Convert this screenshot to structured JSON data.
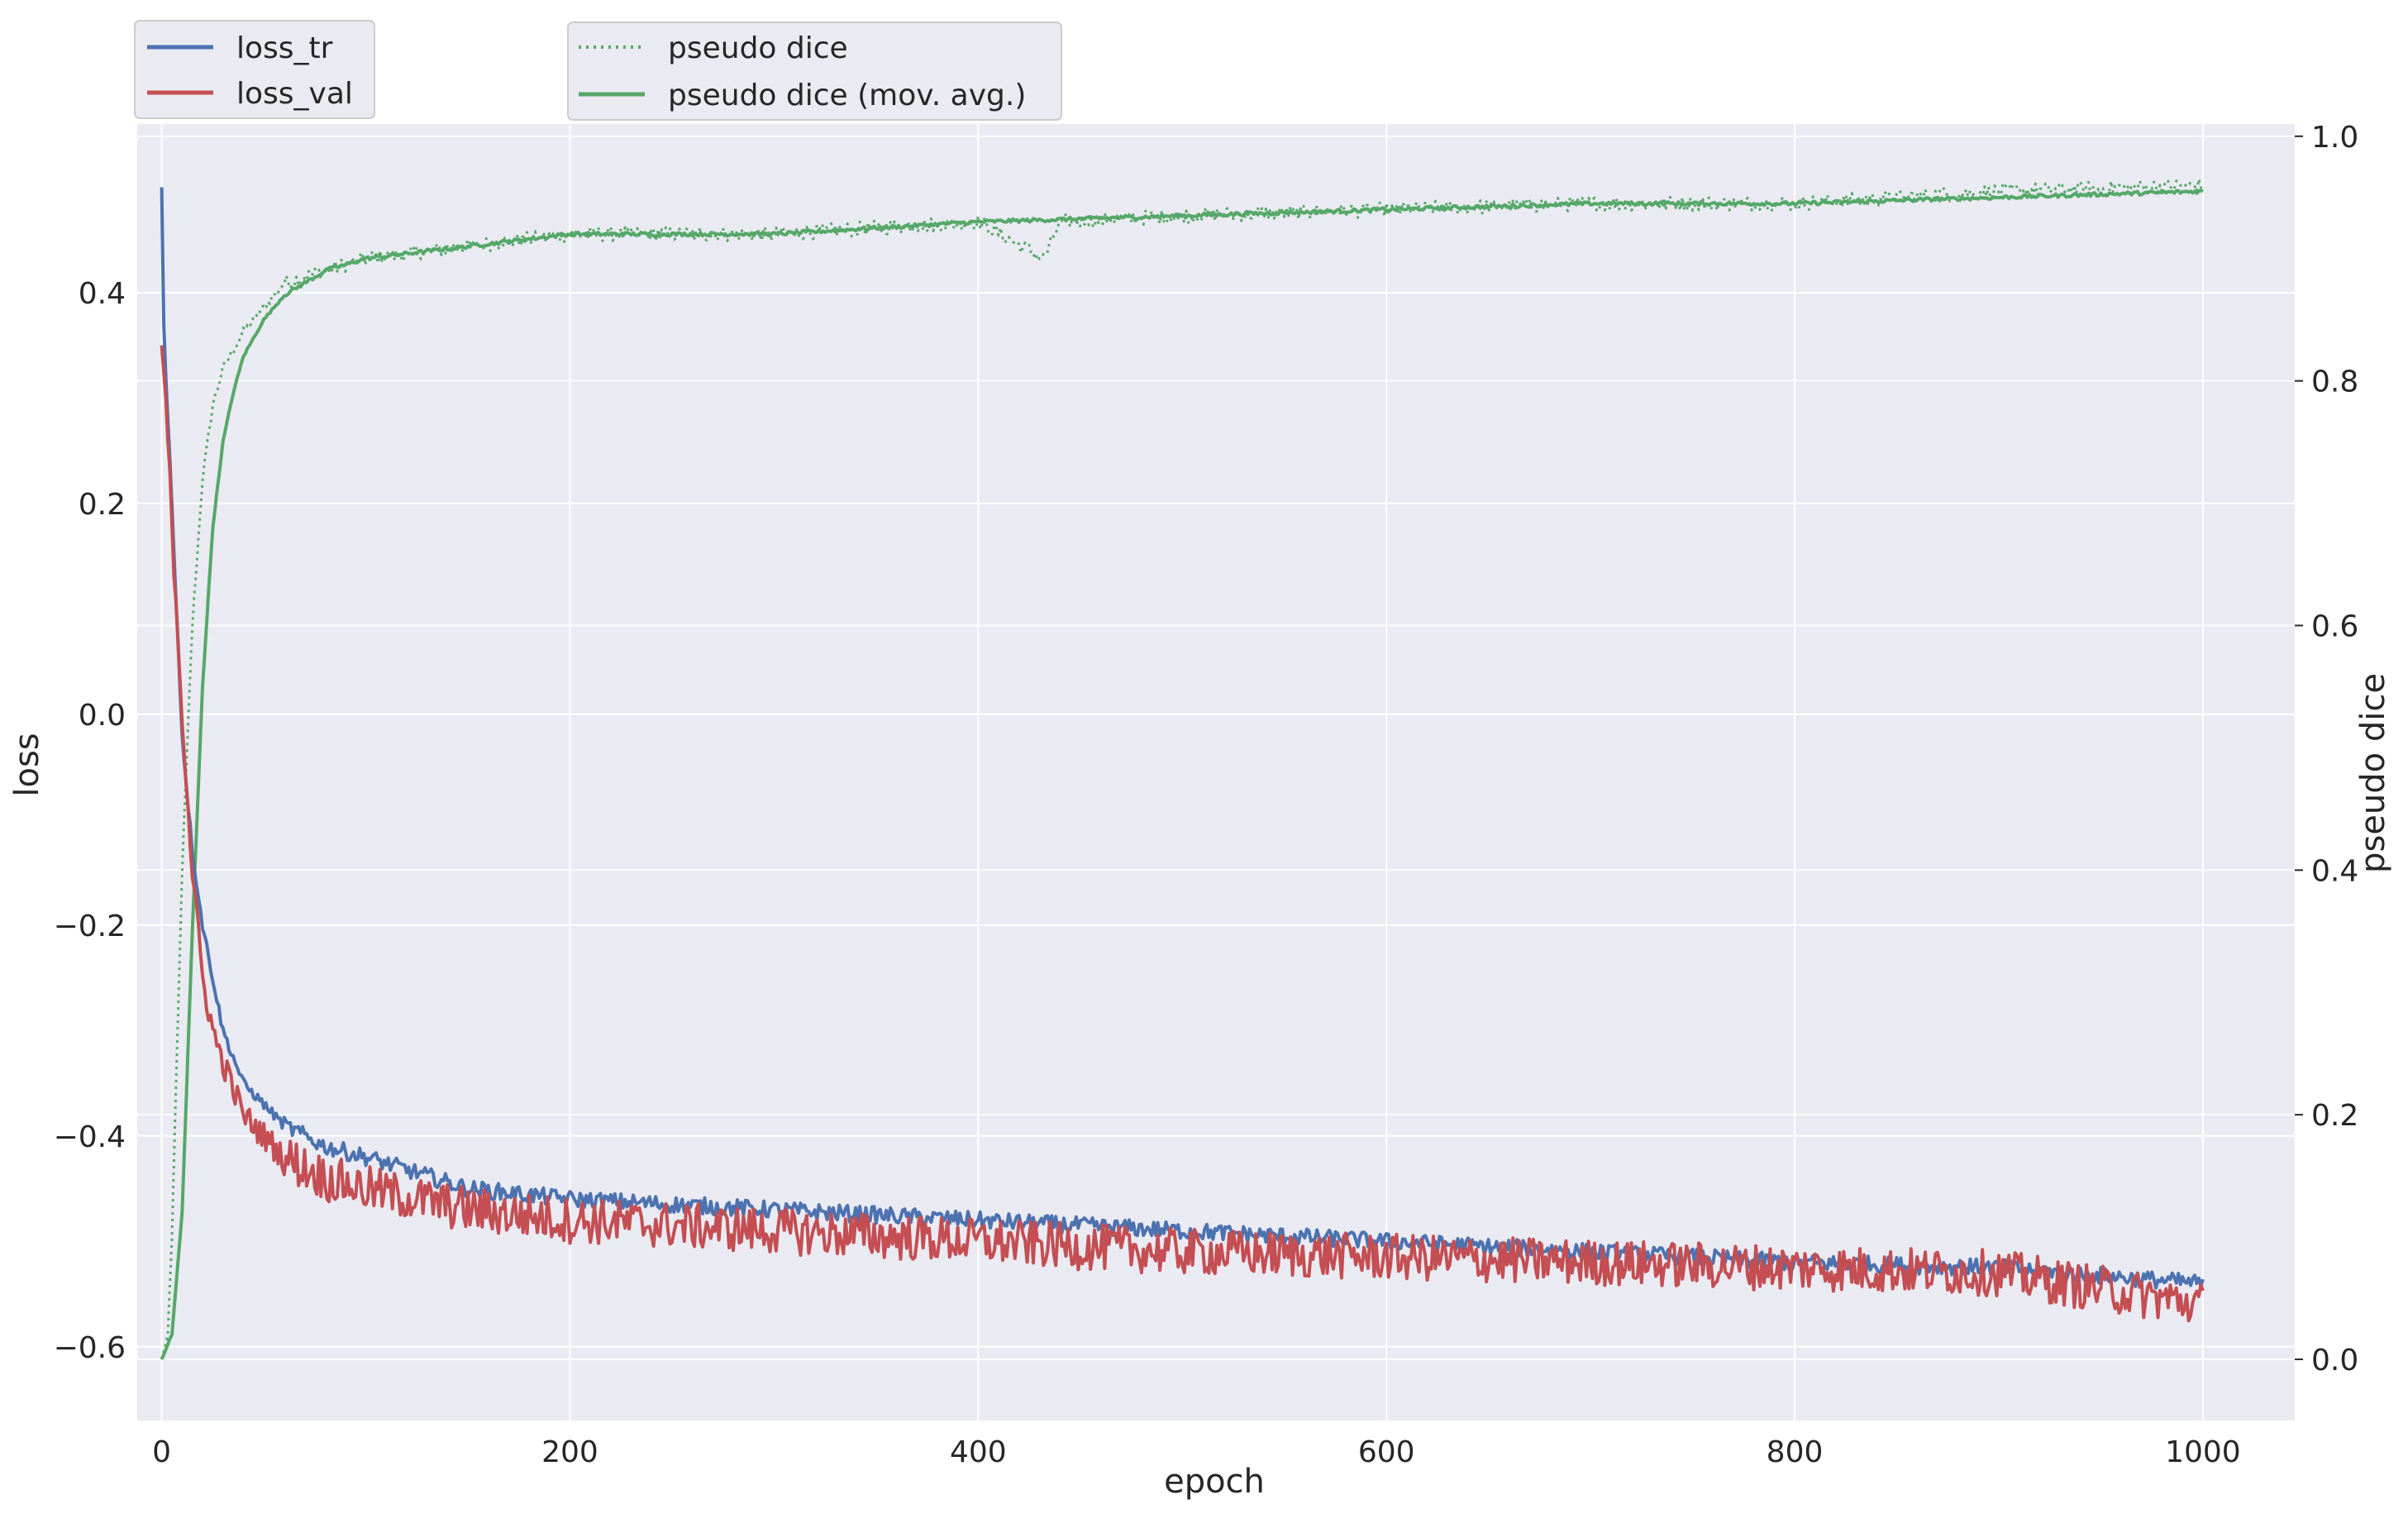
{
  "chart_data": {
    "type": "line",
    "xlabel": "epoch",
    "ylabel_left": "loss",
    "ylabel_right": "pseudo dice",
    "xlim": [
      -12,
      1045
    ],
    "ylim_left": [
      -0.67,
      0.56
    ],
    "ylim_right": [
      -0.05,
      1.01
    ],
    "xticks": [
      0,
      200,
      400,
      600,
      800,
      1000
    ],
    "yticks_left": [
      -0.6,
      -0.4,
      -0.2,
      0.0,
      0.2,
      0.4
    ],
    "yticks_left_labels": [
      "−0.6",
      "−0.4",
      "−0.2",
      "0.0",
      "0.2",
      "0.4"
    ],
    "yticks_right": [
      0.0,
      0.2,
      0.4,
      0.6,
      0.8,
      1.0
    ],
    "yticks_right_labels": [
      "0.0",
      "0.2",
      "0.4",
      "0.6",
      "0.8",
      "1.0"
    ],
    "grid": true,
    "background": "#eaeaf2",
    "colors": {
      "loss_tr": "#4c72b0",
      "loss_val": "#c44e52",
      "dice": "#55a868"
    },
    "legend_left": [
      "loss_tr",
      "loss_val"
    ],
    "legend_right": [
      "pseudo dice",
      "pseudo dice (mov. avg.)"
    ],
    "series": [
      {
        "name": "loss_tr",
        "axis": "left",
        "style": "solid",
        "x": [
          0,
          1,
          2,
          5,
          10,
          15,
          20,
          25,
          30,
          40,
          50,
          60,
          80,
          100,
          150,
          200,
          300,
          400,
          500,
          600,
          700,
          800,
          900,
          1000
        ],
        "y": [
          0.5,
          0.37,
          0.32,
          0.2,
          -0.02,
          -0.13,
          -0.2,
          -0.25,
          -0.3,
          -0.35,
          -0.37,
          -0.39,
          -0.41,
          -0.42,
          -0.45,
          -0.46,
          -0.47,
          -0.48,
          -0.49,
          -0.5,
          -0.51,
          -0.52,
          -0.525,
          -0.54
        ]
      },
      {
        "name": "loss_val",
        "axis": "left",
        "style": "solid",
        "x": [
          0,
          2,
          5,
          10,
          15,
          20,
          25,
          30,
          40,
          50,
          60,
          80,
          100,
          150,
          200,
          300,
          400,
          500,
          600,
          700,
          800,
          900,
          1000
        ],
        "y": [
          0.35,
          0.3,
          0.18,
          0.0,
          -0.15,
          -0.25,
          -0.3,
          -0.33,
          -0.38,
          -0.4,
          -0.42,
          -0.44,
          -0.45,
          -0.47,
          -0.48,
          -0.49,
          -0.5,
          -0.51,
          -0.515,
          -0.52,
          -0.525,
          -0.53,
          -0.56
        ]
      },
      {
        "name": "pseudo dice",
        "axis": "right",
        "style": "dotted",
        "x": [
          0,
          3,
          5,
          10,
          15,
          20,
          25,
          30,
          40,
          50,
          60,
          80,
          100,
          150,
          200,
          300,
          400,
          432,
          435,
          440,
          500,
          600,
          700,
          800,
          900,
          1000
        ],
        "y": [
          0.0,
          0.02,
          0.1,
          0.4,
          0.6,
          0.72,
          0.78,
          0.81,
          0.84,
          0.86,
          0.88,
          0.89,
          0.9,
          0.91,
          0.92,
          0.92,
          0.93,
          0.9,
          0.91,
          0.93,
          0.935,
          0.94,
          0.945,
          0.945,
          0.955,
          0.96
        ]
      },
      {
        "name": "pseudo dice (mov. avg.)",
        "axis": "right",
        "style": "solid",
        "x": [
          0,
          5,
          10,
          15,
          20,
          25,
          30,
          35,
          40,
          50,
          60,
          80,
          100,
          150,
          200,
          300,
          400,
          500,
          600,
          700,
          800,
          900,
          1000
        ],
        "y": [
          0.0,
          0.02,
          0.12,
          0.35,
          0.55,
          0.68,
          0.75,
          0.79,
          0.82,
          0.85,
          0.87,
          0.89,
          0.9,
          0.91,
          0.92,
          0.92,
          0.93,
          0.935,
          0.94,
          0.945,
          0.945,
          0.95,
          0.955
        ]
      }
    ]
  }
}
